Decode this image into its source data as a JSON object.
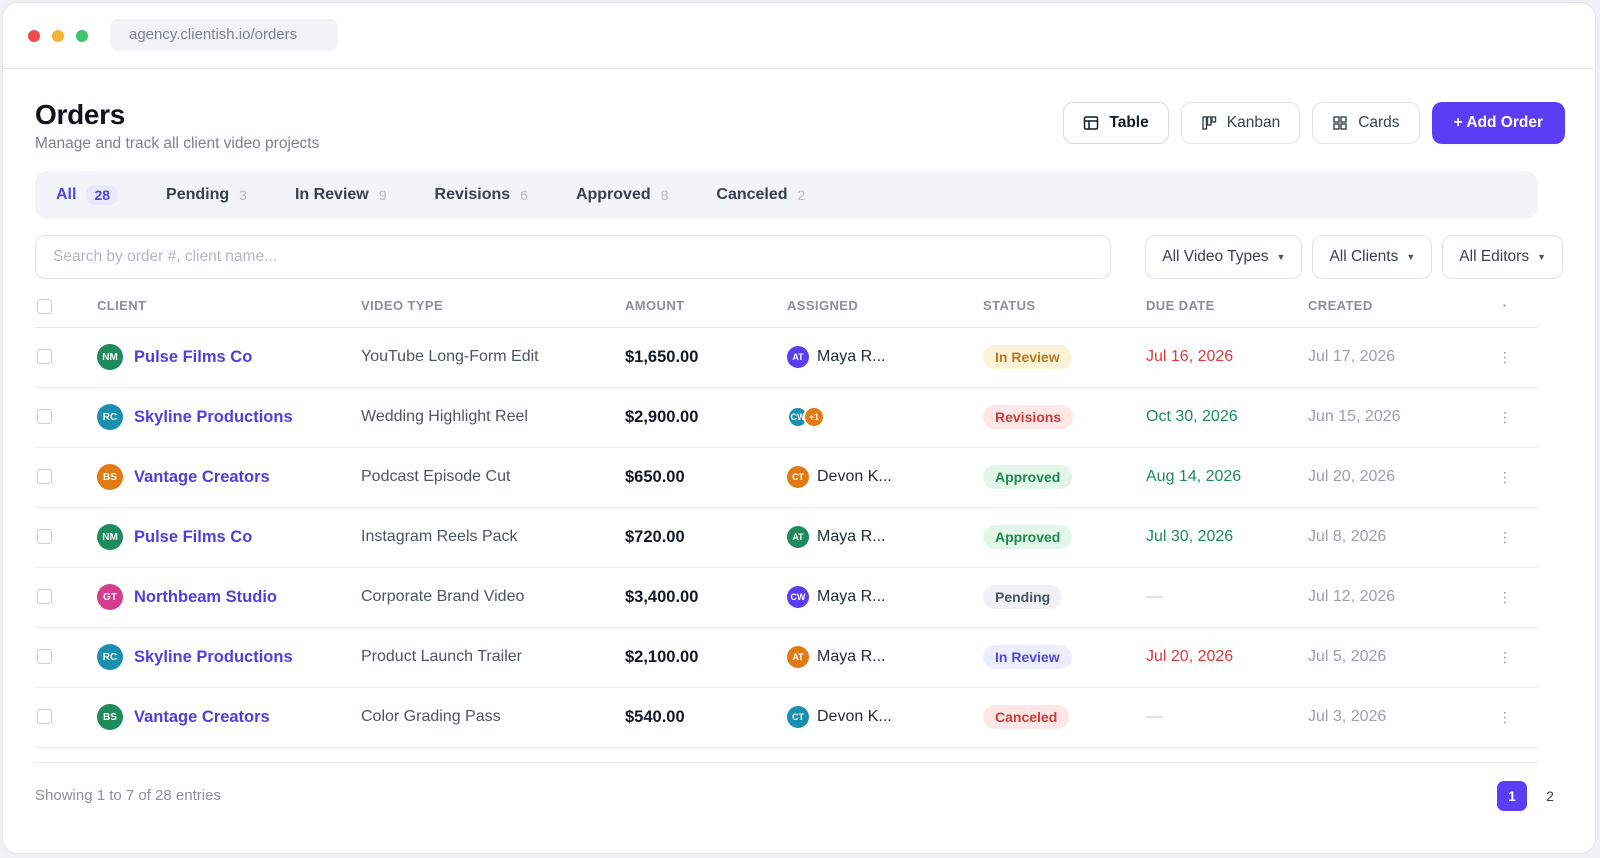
{
  "browser": {
    "url": "agency.clientish.io/orders"
  },
  "header": {
    "title": "Orders",
    "subtitle": "Manage and track all client video projects"
  },
  "views": {
    "table": "Table",
    "kanban": "Kanban",
    "cards": "Cards",
    "add": "+ Add Order"
  },
  "tabs": [
    {
      "label": "All",
      "count": "28"
    },
    {
      "label": "Pending",
      "count": "3"
    },
    {
      "label": "In Review",
      "count": "9"
    },
    {
      "label": "Revisions",
      "count": "6"
    },
    {
      "label": "Approved",
      "count": "8"
    },
    {
      "label": "Canceled",
      "count": "2"
    }
  ],
  "search": {
    "placeholder": "Search by order #, client name..."
  },
  "filters": {
    "video_types": "All Video Types",
    "clients": "All Clients",
    "editors": "All Editors"
  },
  "columns": {
    "client": "CLIENT",
    "video_type": "VIDEO TYPE",
    "amount": "AMOUNT",
    "assigned": "ASSIGNED",
    "status": "STATUS",
    "due": "DUE DATE",
    "created": "CREATED",
    "actions": "·"
  },
  "rows": [
    {
      "initials": "NM",
      "avatar_color": "#1f8a5b",
      "client": "Pulse Films Co",
      "video_type": "YouTube Long-Form Edit",
      "amount": "$1,650.00",
      "assignee_initials": "AT",
      "assignee_color": "#5b3df5",
      "assignee": "Maya R...",
      "status": "In Review",
      "status_bg": "#fdf3d8",
      "status_fg": "#b7791f",
      "due": "Jul 16, 2026",
      "due_color": "#dc3b3b",
      "created": "Jul 17, 2026"
    },
    {
      "initials": "RC",
      "avatar_color": "#1b8fb0",
      "client": "Skyline Productions",
      "video_type": "Wedding Highlight Reel",
      "amount": "$2,900.00",
      "assignee_initials": "CW",
      "assignee_color": "#1b8fb0",
      "assignee_extra": "+1",
      "assignee_extra_color": "#e07a14",
      "assignee": "",
      "status": "Revisions",
      "status_bg": "#fde7e7",
      "status_fg": "#d23a3a",
      "due": "Oct 30, 2026",
      "due_color": "#1f8a5b",
      "created": "Jun 15, 2026"
    },
    {
      "initials": "BS",
      "avatar_color": "#e07a14",
      "client": "Vantage Creators",
      "video_type": "Podcast Episode Cut",
      "amount": "$650.00",
      "assignee_initials": "CT",
      "assignee_color": "#e07a14",
      "assignee": "Devon K...",
      "status": "Approved",
      "status_bg": "#e3f6ea",
      "status_fg": "#1f8a4b",
      "due": "Aug 14, 2026",
      "due_color": "#1f8a5b",
      "created": "Jul 20, 2026"
    },
    {
      "initials": "NM",
      "avatar_color": "#1f8a5b",
      "client": "Pulse Films Co",
      "video_type": "Instagram Reels Pack",
      "amount": "$720.00",
      "assignee_initials": "AT",
      "assignee_color": "#1f8a5b",
      "assignee": "Maya R...",
      "status": "Approved",
      "status_bg": "#e3f6ea",
      "status_fg": "#1f8a4b",
      "due": "Jul 30, 2026",
      "due_color": "#1f8a5b",
      "created": "Jul 8, 2026"
    },
    {
      "initials": "GT",
      "avatar_color": "#d63d8e",
      "client": "Northbeam Studio",
      "video_type": "Corporate Brand Video",
      "amount": "$3,400.00",
      "assignee_initials": "CW",
      "assignee_color": "#5b3df5",
      "assignee": "Maya R...",
      "status": "Pending",
      "status_bg": "#f0f1f4",
      "status_fg": "#4b5563",
      "due": "—",
      "due_color": "#c3c7cf",
      "created": "Jul 12, 2026"
    },
    {
      "initials": "RC",
      "avatar_color": "#1b8fb0",
      "client": "Skyline Productions",
      "video_type": "Product Launch Trailer",
      "amount": "$2,100.00",
      "assignee_initials": "AT",
      "assignee_color": "#e07a14",
      "assignee": "Maya R...",
      "status": "In Review",
      "status_bg": "#eceefd",
      "status_fg": "#4f46e5",
      "due": "Jul 20, 2026",
      "due_color": "#dc3b3b",
      "created": "Jul 5, 2026"
    },
    {
      "initials": "BS",
      "avatar_color": "#1f8a5b",
      "client": "Vantage Creators",
      "video_type": "Color Grading Pass",
      "amount": "$540.00",
      "assignee_initials": "CT",
      "assignee_color": "#1b8fb0",
      "assignee": "Devon K...",
      "status": "Canceled",
      "status_bg": "#fde7e7",
      "status_fg": "#d23a3a",
      "due": "—",
      "due_color": "#c3c7cf",
      "created": "Jul 3, 2026"
    }
  ],
  "footer": {
    "info": "Showing 1 to 7 of 28 entries",
    "pages": [
      "1",
      "2"
    ]
  }
}
